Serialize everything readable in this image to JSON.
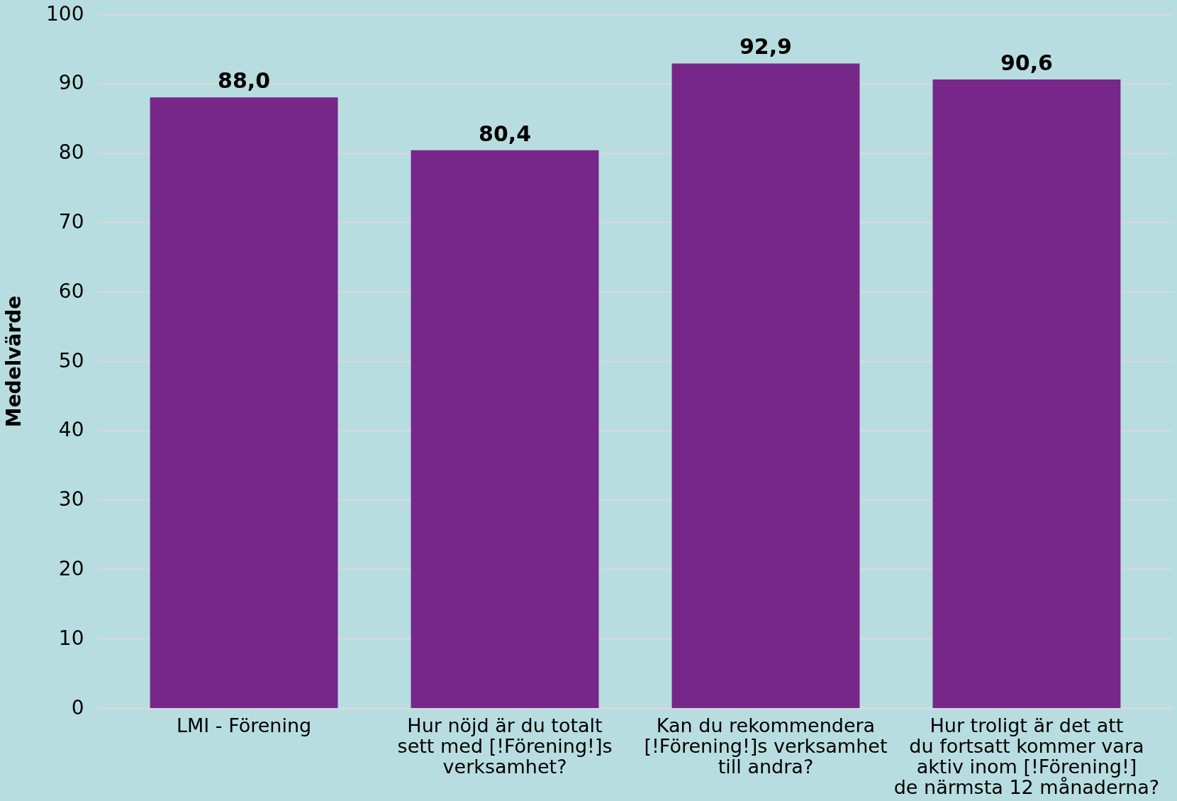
{
  "chart_data": {
    "type": "bar",
    "ylabel": "Medelvärde",
    "categories": [
      "LMI - Förening",
      "Hur nöjd är du totalt sett med [!Förening!]s verksamhet?",
      "Kan du rekommendera [!Förening!]s verksamhet till andra?",
      "Hur troligt är det att du fortsatt kommer vara aktiv inom [!Förening!] de närmsta 12 månaderna?"
    ],
    "values": [
      88.0,
      80.4,
      92.9,
      90.6
    ],
    "color": "#77278a",
    "value_labels": [
      "88,0",
      "80,4",
      "92,9",
      "90,6"
    ],
    "ylim": [
      0,
      100
    ],
    "yticks": [
      0,
      10,
      20,
      30,
      40,
      50,
      60,
      70,
      80,
      90,
      100
    ],
    "grid": "y"
  }
}
